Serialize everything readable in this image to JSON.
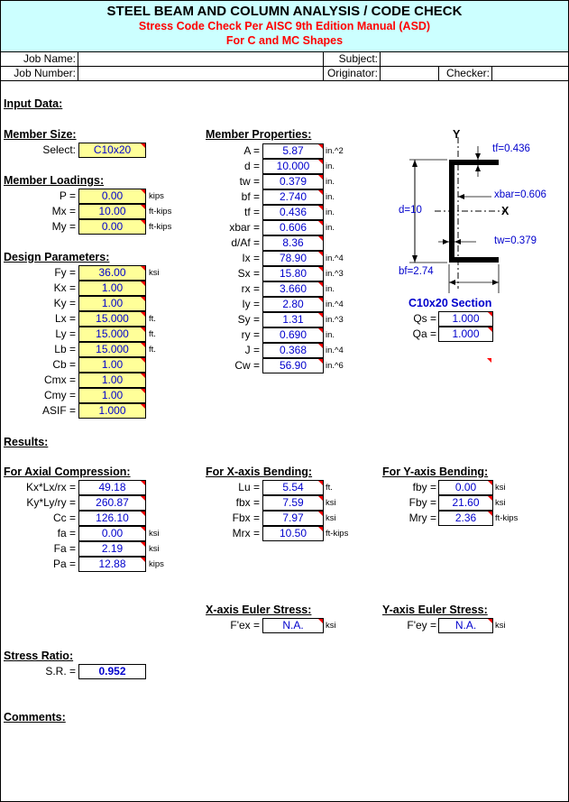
{
  "header": {
    "title": "STEEL BEAM AND COLUMN ANALYSIS / CODE CHECK",
    "subtitle": "Stress Code Check Per AISC 9th Edition Manual (ASD)",
    "subtitle2": "For C and MC Shapes"
  },
  "job": {
    "job_name_label": "Job Name:",
    "job_number_label": "Job Number:",
    "subject_label": "Subject:",
    "originator_label": "Originator:",
    "checker_label": "Checker:"
  },
  "input_data_label": "Input Data:",
  "member_size": {
    "title": "Member Size:",
    "select_label": "Select:",
    "select_value": "C10x20"
  },
  "loadings": {
    "title": "Member Loadings:",
    "rows": [
      {
        "label": "P =",
        "value": "0.00",
        "unit": "kips"
      },
      {
        "label": "Mx =",
        "value": "10.00",
        "unit": "ft-kips"
      },
      {
        "label": "My =",
        "value": "0.00",
        "unit": "ft-kips"
      }
    ]
  },
  "design": {
    "title": "Design Parameters:",
    "rows": [
      {
        "label": "Fy =",
        "value": "36.00",
        "unit": "ksi"
      },
      {
        "label": "Kx =",
        "value": "1.00",
        "unit": ""
      },
      {
        "label": "Ky =",
        "value": "1.00",
        "unit": ""
      },
      {
        "label": "Lx =",
        "value": "15.000",
        "unit": "ft."
      },
      {
        "label": "Ly =",
        "value": "15.000",
        "unit": "ft."
      },
      {
        "label": "Lb =",
        "value": "15.000",
        "unit": "ft."
      },
      {
        "label": "Cb =",
        "value": "1.00",
        "unit": ""
      },
      {
        "label": "Cmx =",
        "value": "1.00",
        "unit": ""
      },
      {
        "label": "Cmy =",
        "value": "1.00",
        "unit": ""
      },
      {
        "label": "ASIF =",
        "value": "1.000",
        "unit": ""
      }
    ]
  },
  "properties": {
    "title": "Member Properties:",
    "rows": [
      {
        "label": "A =",
        "value": "5.87",
        "unit": "in.^2"
      },
      {
        "label": "d =",
        "value": "10.000",
        "unit": "in."
      },
      {
        "label": "tw =",
        "value": "0.379",
        "unit": "in."
      },
      {
        "label": "bf =",
        "value": "2.740",
        "unit": "in."
      },
      {
        "label": "tf =",
        "value": "0.436",
        "unit": "in."
      },
      {
        "label": "xbar =",
        "value": "0.606",
        "unit": "in."
      },
      {
        "label": "d/Af =",
        "value": "8.36",
        "unit": ""
      },
      {
        "label": "Ix =",
        "value": "78.90",
        "unit": "in.^4"
      },
      {
        "label": "Sx =",
        "value": "15.80",
        "unit": "in.^3"
      },
      {
        "label": "rx =",
        "value": "3.660",
        "unit": "in."
      },
      {
        "label": "Iy =",
        "value": "2.80",
        "unit": "in.^4"
      },
      {
        "label": "Sy =",
        "value": "1.31",
        "unit": "in.^3"
      },
      {
        "label": "ry =",
        "value": "0.690",
        "unit": "in."
      },
      {
        "label": "J =",
        "value": "0.368",
        "unit": "in.^4"
      },
      {
        "label": "Cw =",
        "value": "56.90",
        "unit": "in.^6"
      }
    ]
  },
  "diagram": {
    "y_axis": "Y",
    "x_axis": "X",
    "tf": "tf=0.436",
    "xbar": "xbar=0.606",
    "d": "d=10",
    "tw": "tw=0.379",
    "bf": "bf=2.74"
  },
  "section": {
    "title": "C10x20 Section",
    "rows": [
      {
        "label": "Qs =",
        "value": "1.000"
      },
      {
        "label": "Qa =",
        "value": "1.000"
      }
    ]
  },
  "results_label": "Results:",
  "axial": {
    "title": "For Axial Compression:",
    "rows": [
      {
        "label": "Kx*Lx/rx =",
        "value": "49.18",
        "unit": ""
      },
      {
        "label": "Ky*Ly/ry =",
        "value": "260.87",
        "unit": ""
      },
      {
        "label": "Cc =",
        "value": "126.10",
        "unit": ""
      },
      {
        "label": "fa =",
        "value": "0.00",
        "unit": "ksi"
      },
      {
        "label": "Fa =",
        "value": "2.19",
        "unit": "ksi"
      },
      {
        "label": "Pa =",
        "value": "12.88",
        "unit": "kips"
      }
    ]
  },
  "xbending": {
    "title": "For X-axis Bending:",
    "rows": [
      {
        "label": "Lu =",
        "value": "5.54",
        "unit": "ft."
      },
      {
        "label": "fbx =",
        "value": "7.59",
        "unit": "ksi"
      },
      {
        "label": "Fbx =",
        "value": "7.97",
        "unit": "ksi"
      },
      {
        "label": "Mrx =",
        "value": "10.50",
        "unit": "ft-kips"
      }
    ]
  },
  "ybending": {
    "title": "For Y-axis Bending:",
    "rows": [
      {
        "label": "fby =",
        "value": "0.00",
        "unit": "ksi"
      },
      {
        "label": "Fby =",
        "value": "21.60",
        "unit": "ksi"
      },
      {
        "label": "Mry =",
        "value": "2.36",
        "unit": "ft-kips"
      }
    ]
  },
  "xeuler": {
    "title": "X-axis Euler Stress:",
    "label": "F'ex =",
    "value": "N.A.",
    "unit": "ksi"
  },
  "yeuler": {
    "title": "Y-axis Euler Stress:",
    "label": "F'ey =",
    "value": "N.A.",
    "unit": "ksi"
  },
  "stress_ratio": {
    "title": "Stress Ratio:",
    "label": "S.R. =",
    "value": "0.952"
  },
  "comments_label": "Comments:"
}
